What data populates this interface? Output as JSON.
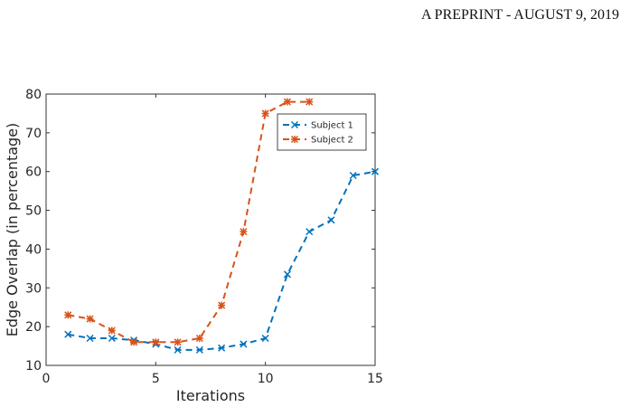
{
  "header": {
    "text": "A PREPRINT - AUGUST 9, 2019"
  },
  "chart_data": {
    "type": "line",
    "title": "",
    "xlabel": "Iterations",
    "ylabel": "Edge Overlap (in percentage)",
    "xlim": [
      0,
      15
    ],
    "ylim": [
      10,
      80
    ],
    "xticks": [
      0,
      5,
      10,
      15
    ],
    "yticks": [
      10,
      20,
      30,
      40,
      50,
      60,
      70,
      80
    ],
    "grid": false,
    "legend_position": "top-right",
    "series": [
      {
        "name": "Subject 1",
        "color": "#0072BD",
        "marker": "x",
        "x": [
          1,
          2,
          3,
          4,
          5,
          6,
          7,
          8,
          9,
          10,
          11,
          12,
          13,
          14,
          15
        ],
        "values": [
          18,
          17,
          17,
          16.5,
          15.5,
          14,
          14,
          14.5,
          15.5,
          17,
          33.5,
          44.5,
          47.5,
          59,
          60
        ]
      },
      {
        "name": "Subject 2",
        "color": "#D95319",
        "marker": "*",
        "x": [
          1,
          2,
          3,
          4,
          5,
          6,
          7,
          8,
          9,
          10,
          11,
          12
        ],
        "values": [
          23,
          22,
          19,
          16,
          16,
          16,
          17,
          25.5,
          44.5,
          75,
          78,
          78
        ]
      }
    ]
  }
}
